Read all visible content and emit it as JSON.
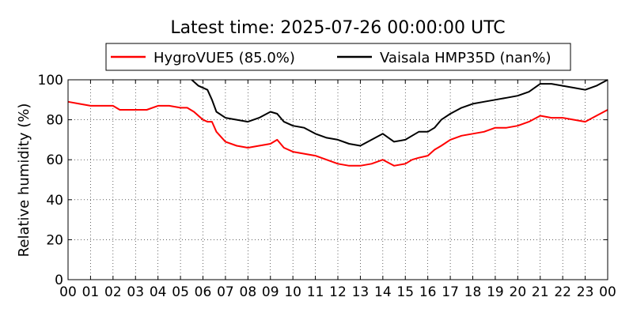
{
  "chart_data": {
    "type": "line",
    "title": "Latest time: 2025-07-26 00:00:00 UTC",
    "ylabel": "Relative humidity (%)",
    "xlabel": "",
    "xlim": [
      0,
      24
    ],
    "ylim": [
      0,
      100
    ],
    "x_tick_labels": [
      "00",
      "01",
      "02",
      "03",
      "04",
      "05",
      "06",
      "07",
      "08",
      "09",
      "10",
      "11",
      "12",
      "13",
      "14",
      "15",
      "16",
      "17",
      "18",
      "19",
      "20",
      "21",
      "22",
      "23",
      "00"
    ],
    "y_tick_labels": [
      "0",
      "20",
      "40",
      "60",
      "80",
      "100"
    ],
    "y_ticks": [
      0,
      20,
      40,
      60,
      80,
      100
    ],
    "grid": true,
    "legend_position": "top-center",
    "series": [
      {
        "name": "HygroVUE5 (85.0%)",
        "color": "#ff0000",
        "x": [
          0,
          0.5,
          1,
          1.5,
          2,
          2.3,
          3,
          3.5,
          4,
          4.5,
          5,
          5.3,
          5.6,
          6,
          6.2,
          6.4,
          6.6,
          7,
          7.5,
          8,
          8.5,
          9,
          9.3,
          9.6,
          10,
          10.5,
          11,
          11.5,
          12,
          12.5,
          13,
          13.5,
          14,
          14.5,
          15,
          15.3,
          15.6,
          16,
          16.3,
          16.6,
          17,
          17.5,
          18,
          18.5,
          19,
          19.5,
          20,
          20.5,
          21,
          21.5,
          22,
          22.5,
          23,
          23.5,
          24
        ],
        "y": [
          89,
          88,
          87,
          87,
          87,
          85,
          85,
          85,
          87,
          87,
          86,
          86,
          84,
          80,
          79,
          79,
          74,
          69,
          67,
          66,
          67,
          68,
          70,
          66,
          64,
          63,
          62,
          60,
          58,
          57,
          57,
          58,
          60,
          57,
          58,
          60,
          61,
          62,
          65,
          67,
          70,
          72,
          73,
          74,
          76,
          76,
          77,
          79,
          82,
          81,
          81,
          80,
          79,
          82,
          85
        ]
      },
      {
        "name": "Vaisala HMP35D (nan%)",
        "color": "#000000",
        "x": [
          5.5,
          5.8,
          6.2,
          6.4,
          6.6,
          7,
          7.5,
          8,
          8.5,
          9,
          9.3,
          9.6,
          10,
          10.5,
          11,
          11.5,
          12,
          12.5,
          13,
          13.5,
          14,
          14.5,
          15,
          15.3,
          15.6,
          16,
          16.3,
          16.6,
          17,
          17.5,
          18,
          18.5,
          19,
          19.5,
          20,
          20.5,
          21,
          21.5,
          22,
          22.5,
          23,
          23.5,
          24
        ],
        "y": [
          100,
          97,
          95,
          90,
          84,
          81,
          80,
          79,
          81,
          84,
          83,
          79,
          77,
          76,
          73,
          71,
          70,
          68,
          67,
          70,
          73,
          69,
          70,
          72,
          74,
          74,
          76,
          80,
          83,
          86,
          88,
          89,
          90,
          91,
          92,
          94,
          98,
          98,
          97,
          96,
          95,
          97,
          100
        ]
      }
    ]
  }
}
